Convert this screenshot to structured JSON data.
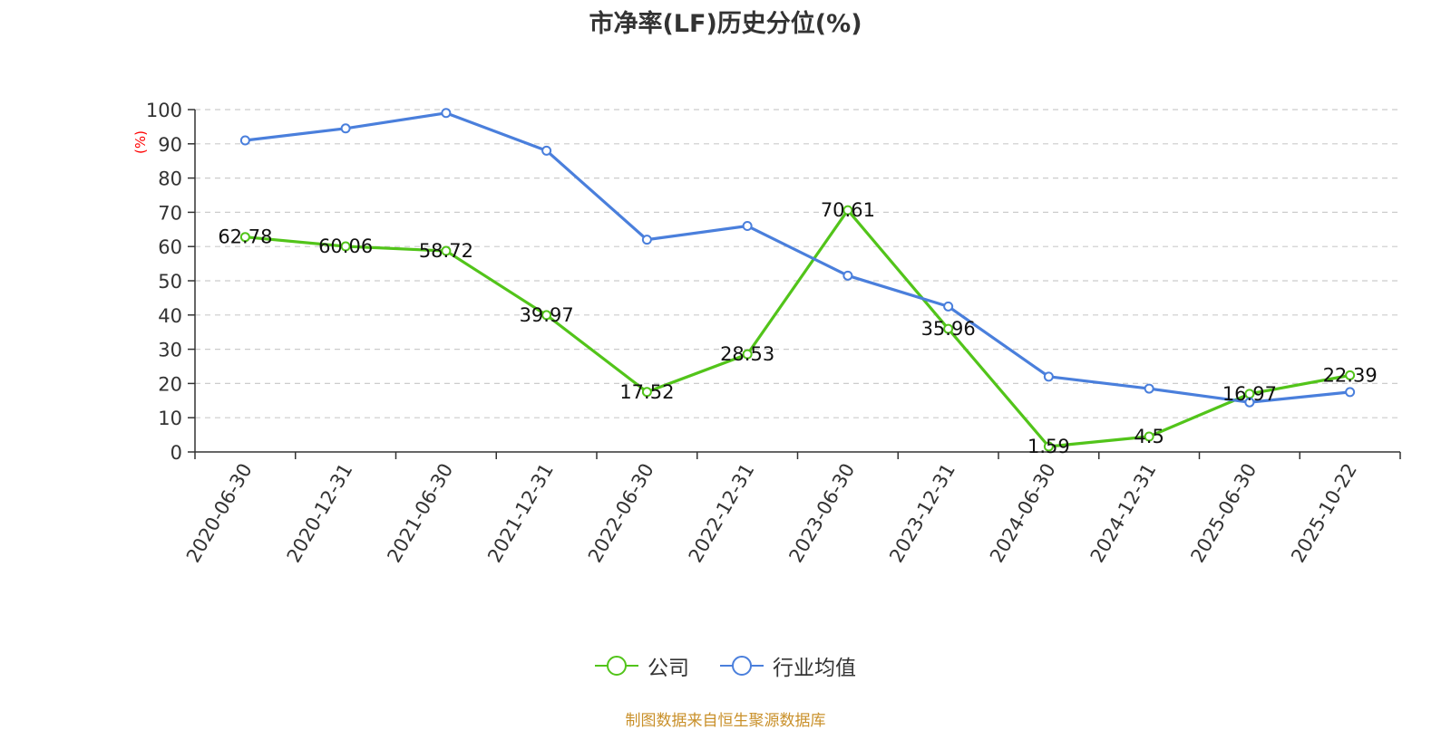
{
  "chart_data": {
    "type": "line",
    "title": "市净率(LF)历史分位(%)",
    "ylabel": "(%)",
    "ylim": [
      0,
      100
    ],
    "yticks": [
      0,
      10,
      20,
      30,
      40,
      50,
      60,
      70,
      80,
      90,
      100
    ],
    "grid": true,
    "legend_position": "bottom",
    "categories": [
      "2020-06-30",
      "2020-12-31",
      "2021-06-30",
      "2021-12-31",
      "2022-06-30",
      "2022-12-31",
      "2023-06-30",
      "2023-12-31",
      "2024-06-30",
      "2024-12-31",
      "2025-06-30",
      "2025-10-22"
    ],
    "series": [
      {
        "name": "公司",
        "color": "#52c41a",
        "show_labels": true,
        "values": [
          62.78,
          60.06,
          58.72,
          39.97,
          17.52,
          28.53,
          70.61,
          35.96,
          1.59,
          4.5,
          16.97,
          22.39
        ],
        "labels": [
          "62.78",
          "60.06",
          "58.72",
          "39.97",
          "17.52",
          "28.53",
          "70.61",
          "35.96",
          "1.59",
          "4.5",
          "16.97",
          "22.39"
        ]
      },
      {
        "name": "行业均值",
        "color": "#4a7fdc",
        "show_labels": false,
        "values": [
          91,
          94.5,
          99,
          88,
          62,
          66,
          51.5,
          42.5,
          22,
          18.5,
          14.5,
          17.5
        ]
      }
    ]
  },
  "source_note": "制图数据来自恒生聚源数据库"
}
